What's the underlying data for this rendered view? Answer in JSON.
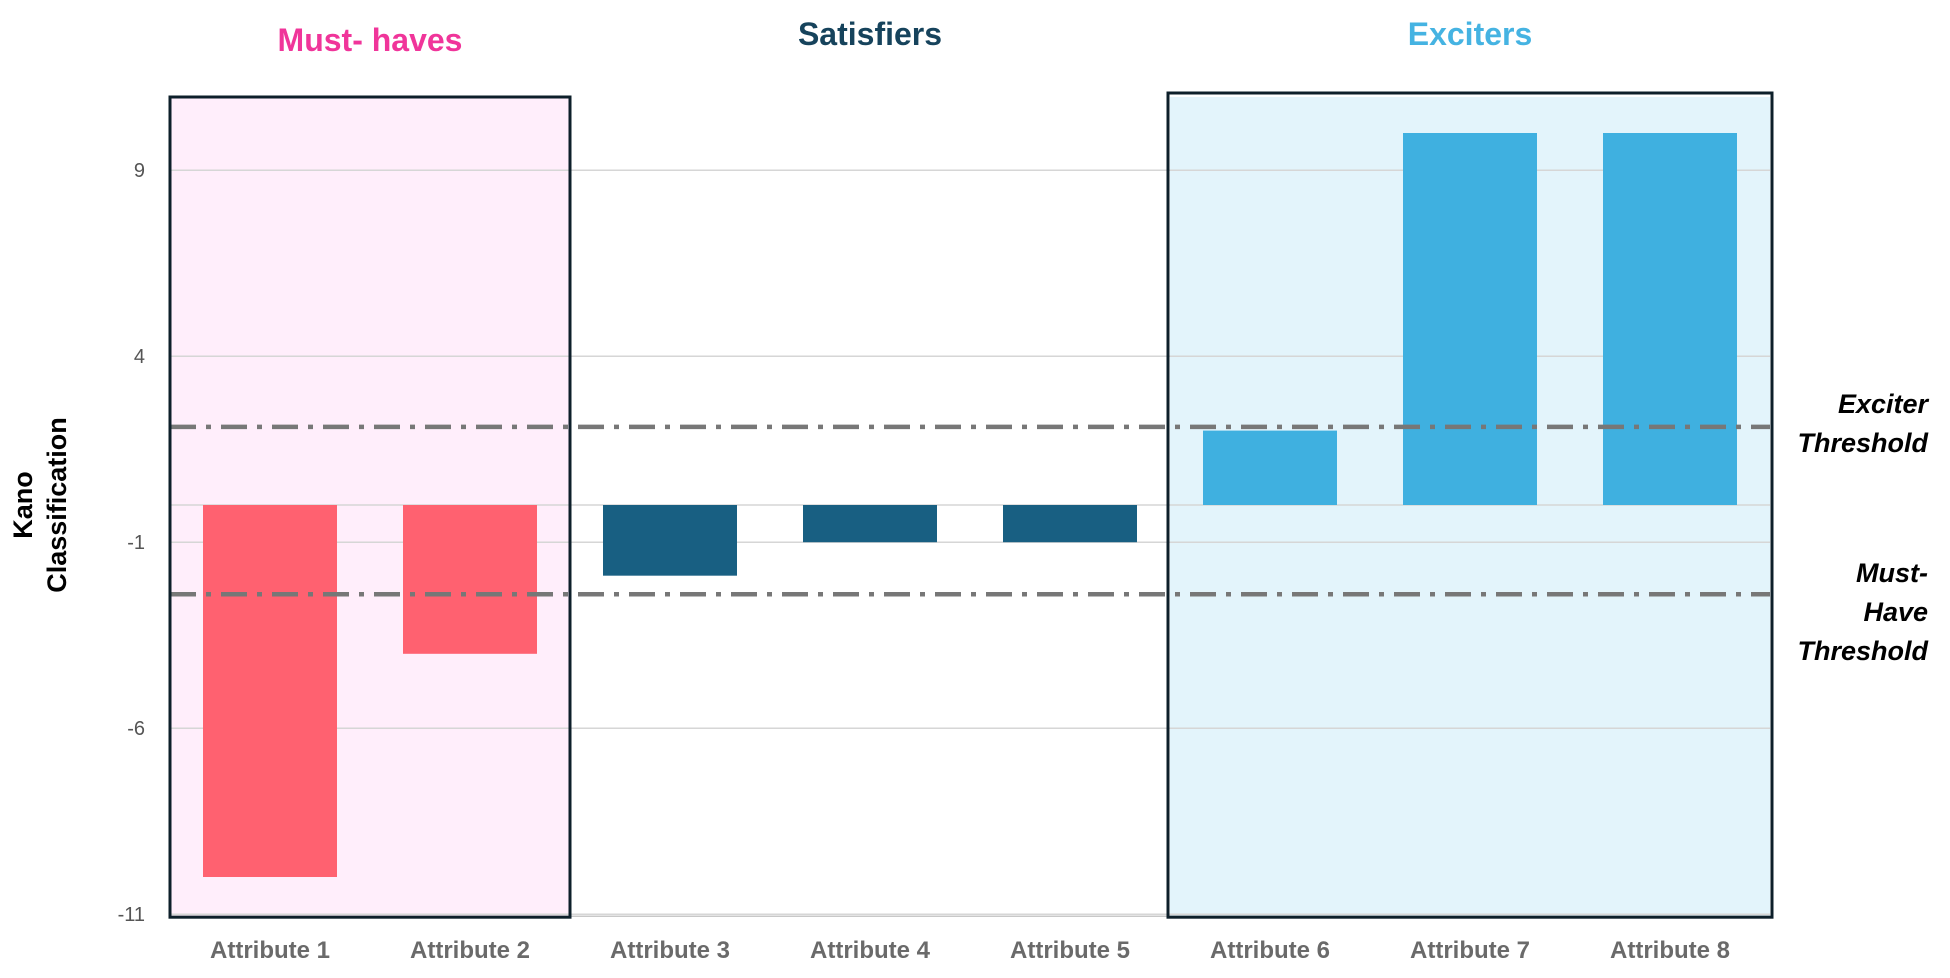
{
  "chart_data": {
    "type": "bar",
    "categories": [
      "Attribute 1",
      "Attribute 2",
      "Attribute 3",
      "Attribute 4",
      "Attribute 5",
      "Attribute 6",
      "Attribute 7",
      "Attribute 8"
    ],
    "values": [
      -10,
      -4,
      -1.9,
      -1,
      -1,
      2,
      10,
      10
    ],
    "bar_colors": [
      "#FF6170",
      "#FF6170",
      "#185F82",
      "#185F82",
      "#185F82",
      "#3FB0E0",
      "#3FB0E0",
      "#3FB0E0"
    ],
    "ylabel": "Kano\nClassification",
    "yticks": [
      9,
      4,
      -1,
      -6,
      -11
    ],
    "ylim": [
      -11,
      11
    ],
    "grid": true,
    "groups": [
      {
        "title": "Must- haves",
        "color": "#F0359A",
        "fill": "#FFEEFB",
        "range": [
          0,
          1
        ]
      },
      {
        "title": "Satisfiers",
        "color": "#16435C",
        "fill": "#FFFFFF",
        "range": [
          2,
          4
        ]
      },
      {
        "title": "Exciters",
        "color": "#45B3E2",
        "fill": "#E3F4FB",
        "range": [
          5,
          7
        ]
      }
    ],
    "thresholds": [
      {
        "label": "Exciter\nThreshold",
        "value": 2.1,
        "color": "#777777"
      },
      {
        "label": "Must-\nHave\nThreshold",
        "value": -2.4,
        "color": "#777777"
      }
    ]
  }
}
